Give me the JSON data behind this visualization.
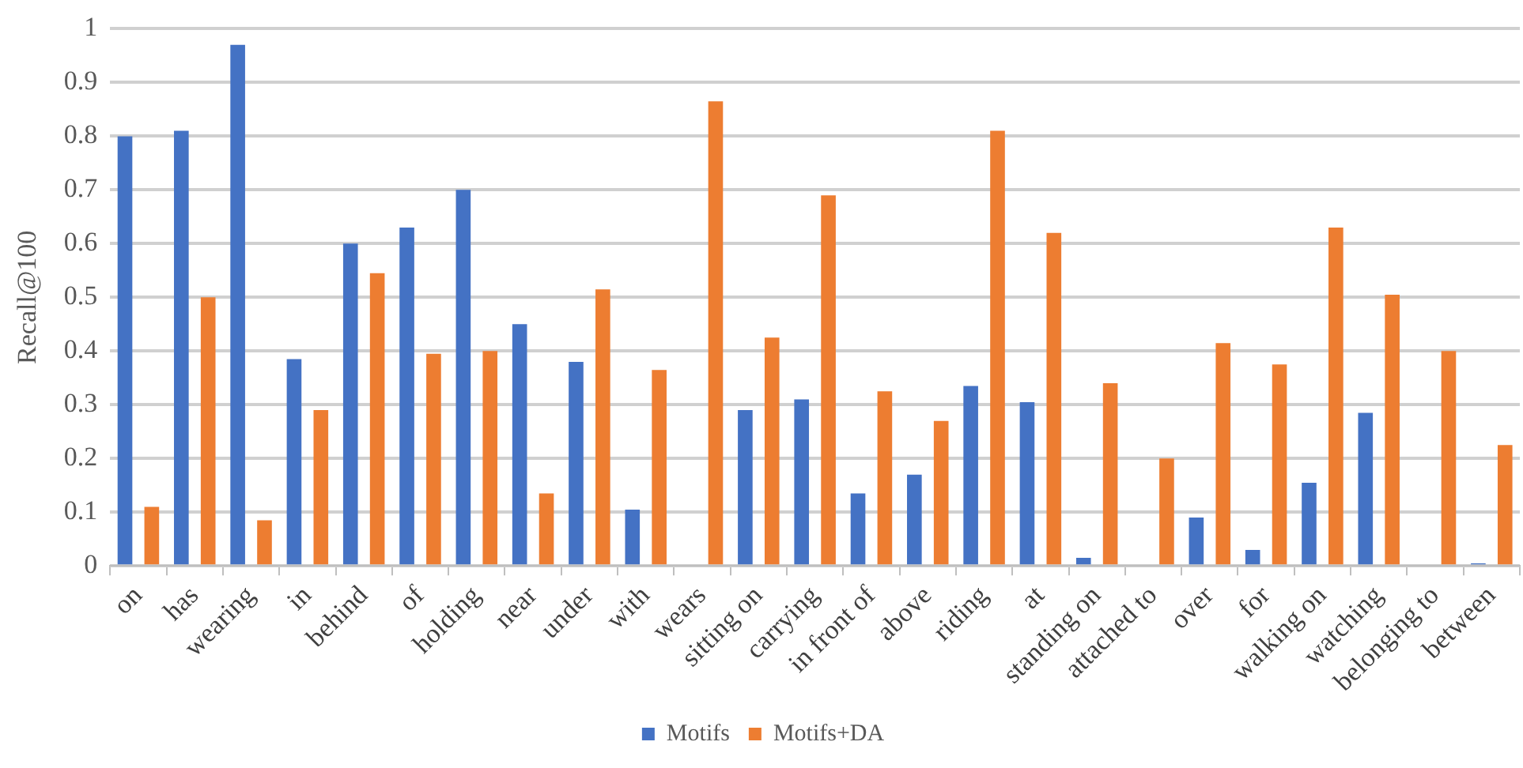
{
  "chart_data": {
    "type": "bar",
    "ylabel": "Recall@100",
    "categories": [
      "on",
      "has",
      "wearing",
      "in",
      "behind",
      "of",
      "holding",
      "near",
      "under",
      "with",
      "wears",
      "sitting on",
      "carrying",
      "in front of",
      "above",
      "riding",
      "at",
      "standing on",
      "attached to",
      "over",
      "for",
      "walking on",
      "watching",
      "belonging to",
      "between"
    ],
    "series": [
      {
        "name": "Motifs",
        "color": "#4472c4",
        "values": [
          0.8,
          0.81,
          0.97,
          0.385,
          0.6,
          0.63,
          0.7,
          0.45,
          0.38,
          0.105,
          0,
          0.29,
          0.31,
          0.135,
          0.17,
          0.335,
          0.305,
          0.015,
          0,
          0.09,
          0.03,
          0.155,
          0.285,
          0,
          0.005
        ]
      },
      {
        "name": "Motifs+DA",
        "color": "#ed7d31",
        "values": [
          0.11,
          0.5,
          0.085,
          0.29,
          0.545,
          0.395,
          0.4,
          0.135,
          0.515,
          0.365,
          0.865,
          0.425,
          0.69,
          0.325,
          0.27,
          0.81,
          0.62,
          0.34,
          0.2,
          0.415,
          0.375,
          0.63,
          0.505,
          0.4,
          0.225
        ]
      }
    ],
    "ylim": [
      0,
      1
    ],
    "yticks": [
      0,
      0.1,
      0.2,
      0.3,
      0.4,
      0.5,
      0.6,
      0.7,
      0.8,
      0.9,
      1
    ],
    "grid": "y",
    "legend": "bottom"
  }
}
